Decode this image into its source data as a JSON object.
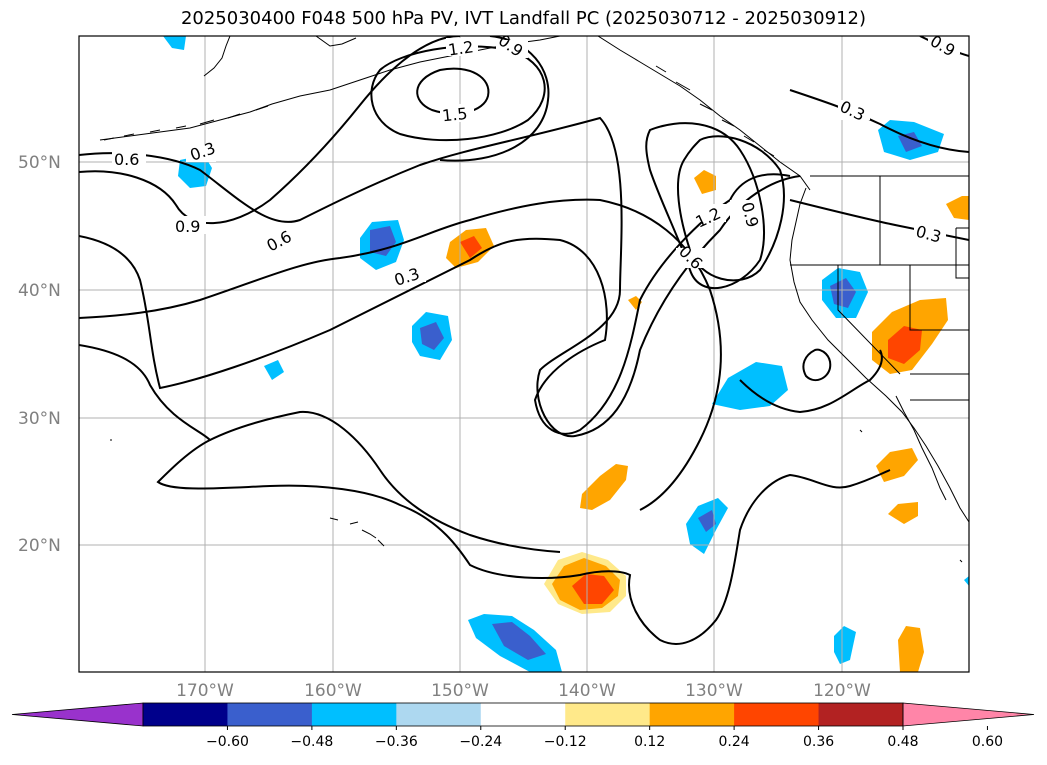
{
  "title": "2025030400 F048 500 hPa PV, IVT Landfall PC (2025030712 - 2025030912)",
  "lat_labels": [
    "50°N",
    "40°N",
    "30°N",
    "20°N"
  ],
  "lon_labels": [
    "170°W",
    "160°W",
    "150°W",
    "140°W",
    "130°W",
    "120°W"
  ],
  "contour_labels": [
    "0.6",
    "0.3",
    "0.9",
    "0.6",
    "0.3",
    "1.2",
    "1.5",
    "0.9",
    "1.2",
    "0.9",
    "0.6",
    "0.3",
    "0.3",
    "0.9"
  ],
  "colorbar": {
    "ticks": [
      "−0.60",
      "−0.48",
      "−0.36",
      "−0.24",
      "−0.12",
      "0.12",
      "0.24",
      "0.36",
      "0.48",
      "0.60"
    ],
    "colors": [
      "#9932cc",
      "#00008b",
      "#3a5fcd",
      "#00bfff",
      "#add8f0",
      "#ffffff",
      "#ffe98a",
      "#ffa500",
      "#ff4500",
      "#b22222",
      "#ff85a8"
    ]
  }
}
